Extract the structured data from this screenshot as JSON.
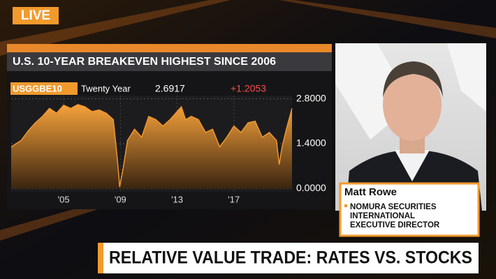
{
  "live_badge": "LIVE",
  "chart_data": {
    "type": "area",
    "title": "U.S. 10-YEAR BREAKEVEN HIGHEST SINCE 2006",
    "ticker": "USGGBE10",
    "tenor": "Twenty Year",
    "last_value": "2.6917",
    "change": "+1.2053",
    "color": "#f0962e",
    "x": [
      2001.3,
      2002,
      2002.5,
      2003,
      2003.5,
      2004,
      2004.5,
      2005,
      2005.5,
      2006,
      2006.5,
      2007,
      2007.5,
      2008,
      2008.5,
      2008.8,
      2008.95,
      2009.2,
      2009.5,
      2010,
      2010.5,
      2011,
      2011.5,
      2012,
      2012.5,
      2013,
      2013.3,
      2013.6,
      2014,
      2014.5,
      2015,
      2015.5,
      2016,
      2016.5,
      2017,
      2017.5,
      2018,
      2018.5,
      2019,
      2019.5,
      2020,
      2020.2,
      2020.4,
      2020.7,
      2021.1
    ],
    "values": [
      1.3,
      1.5,
      1.8,
      2.05,
      2.25,
      2.5,
      2.35,
      2.6,
      2.5,
      2.62,
      2.55,
      2.4,
      2.45,
      2.35,
      2.15,
      0.85,
      0.05,
      0.65,
      1.5,
      1.85,
      1.6,
      2.25,
      2.15,
      1.95,
      2.15,
      2.4,
      2.55,
      2.15,
      2.25,
      2.15,
      1.75,
      1.85,
      1.3,
      1.6,
      1.95,
      1.75,
      2.05,
      2.1,
      1.6,
      1.75,
      1.5,
      0.75,
      1.3,
      1.85,
      2.5
    ],
    "xlim": [
      2001.3,
      2021.1
    ],
    "xticks": [
      {
        "value": 2005,
        "label": "'05"
      },
      {
        "value": 2009,
        "label": "'09"
      },
      {
        "value": 2013,
        "label": "'13"
      },
      {
        "value": 2017,
        "label": "'17"
      }
    ],
    "ylim": [
      -0.1,
      2.9
    ],
    "yticks": [
      {
        "value": 0,
        "label": "0.0000"
      },
      {
        "value": 1.4,
        "label": "1.4000"
      },
      {
        "value": 2.8,
        "label": "2.8000"
      }
    ]
  },
  "guest": {
    "name": "Matt Rowe",
    "line1": "NOMURA SECURITIES",
    "line2": "INTERNATIONAL",
    "line3": "EXECUTIVE DIRECTOR"
  },
  "headline": "RELATIVE VALUE TRADE: RATES VS. STOCKS"
}
